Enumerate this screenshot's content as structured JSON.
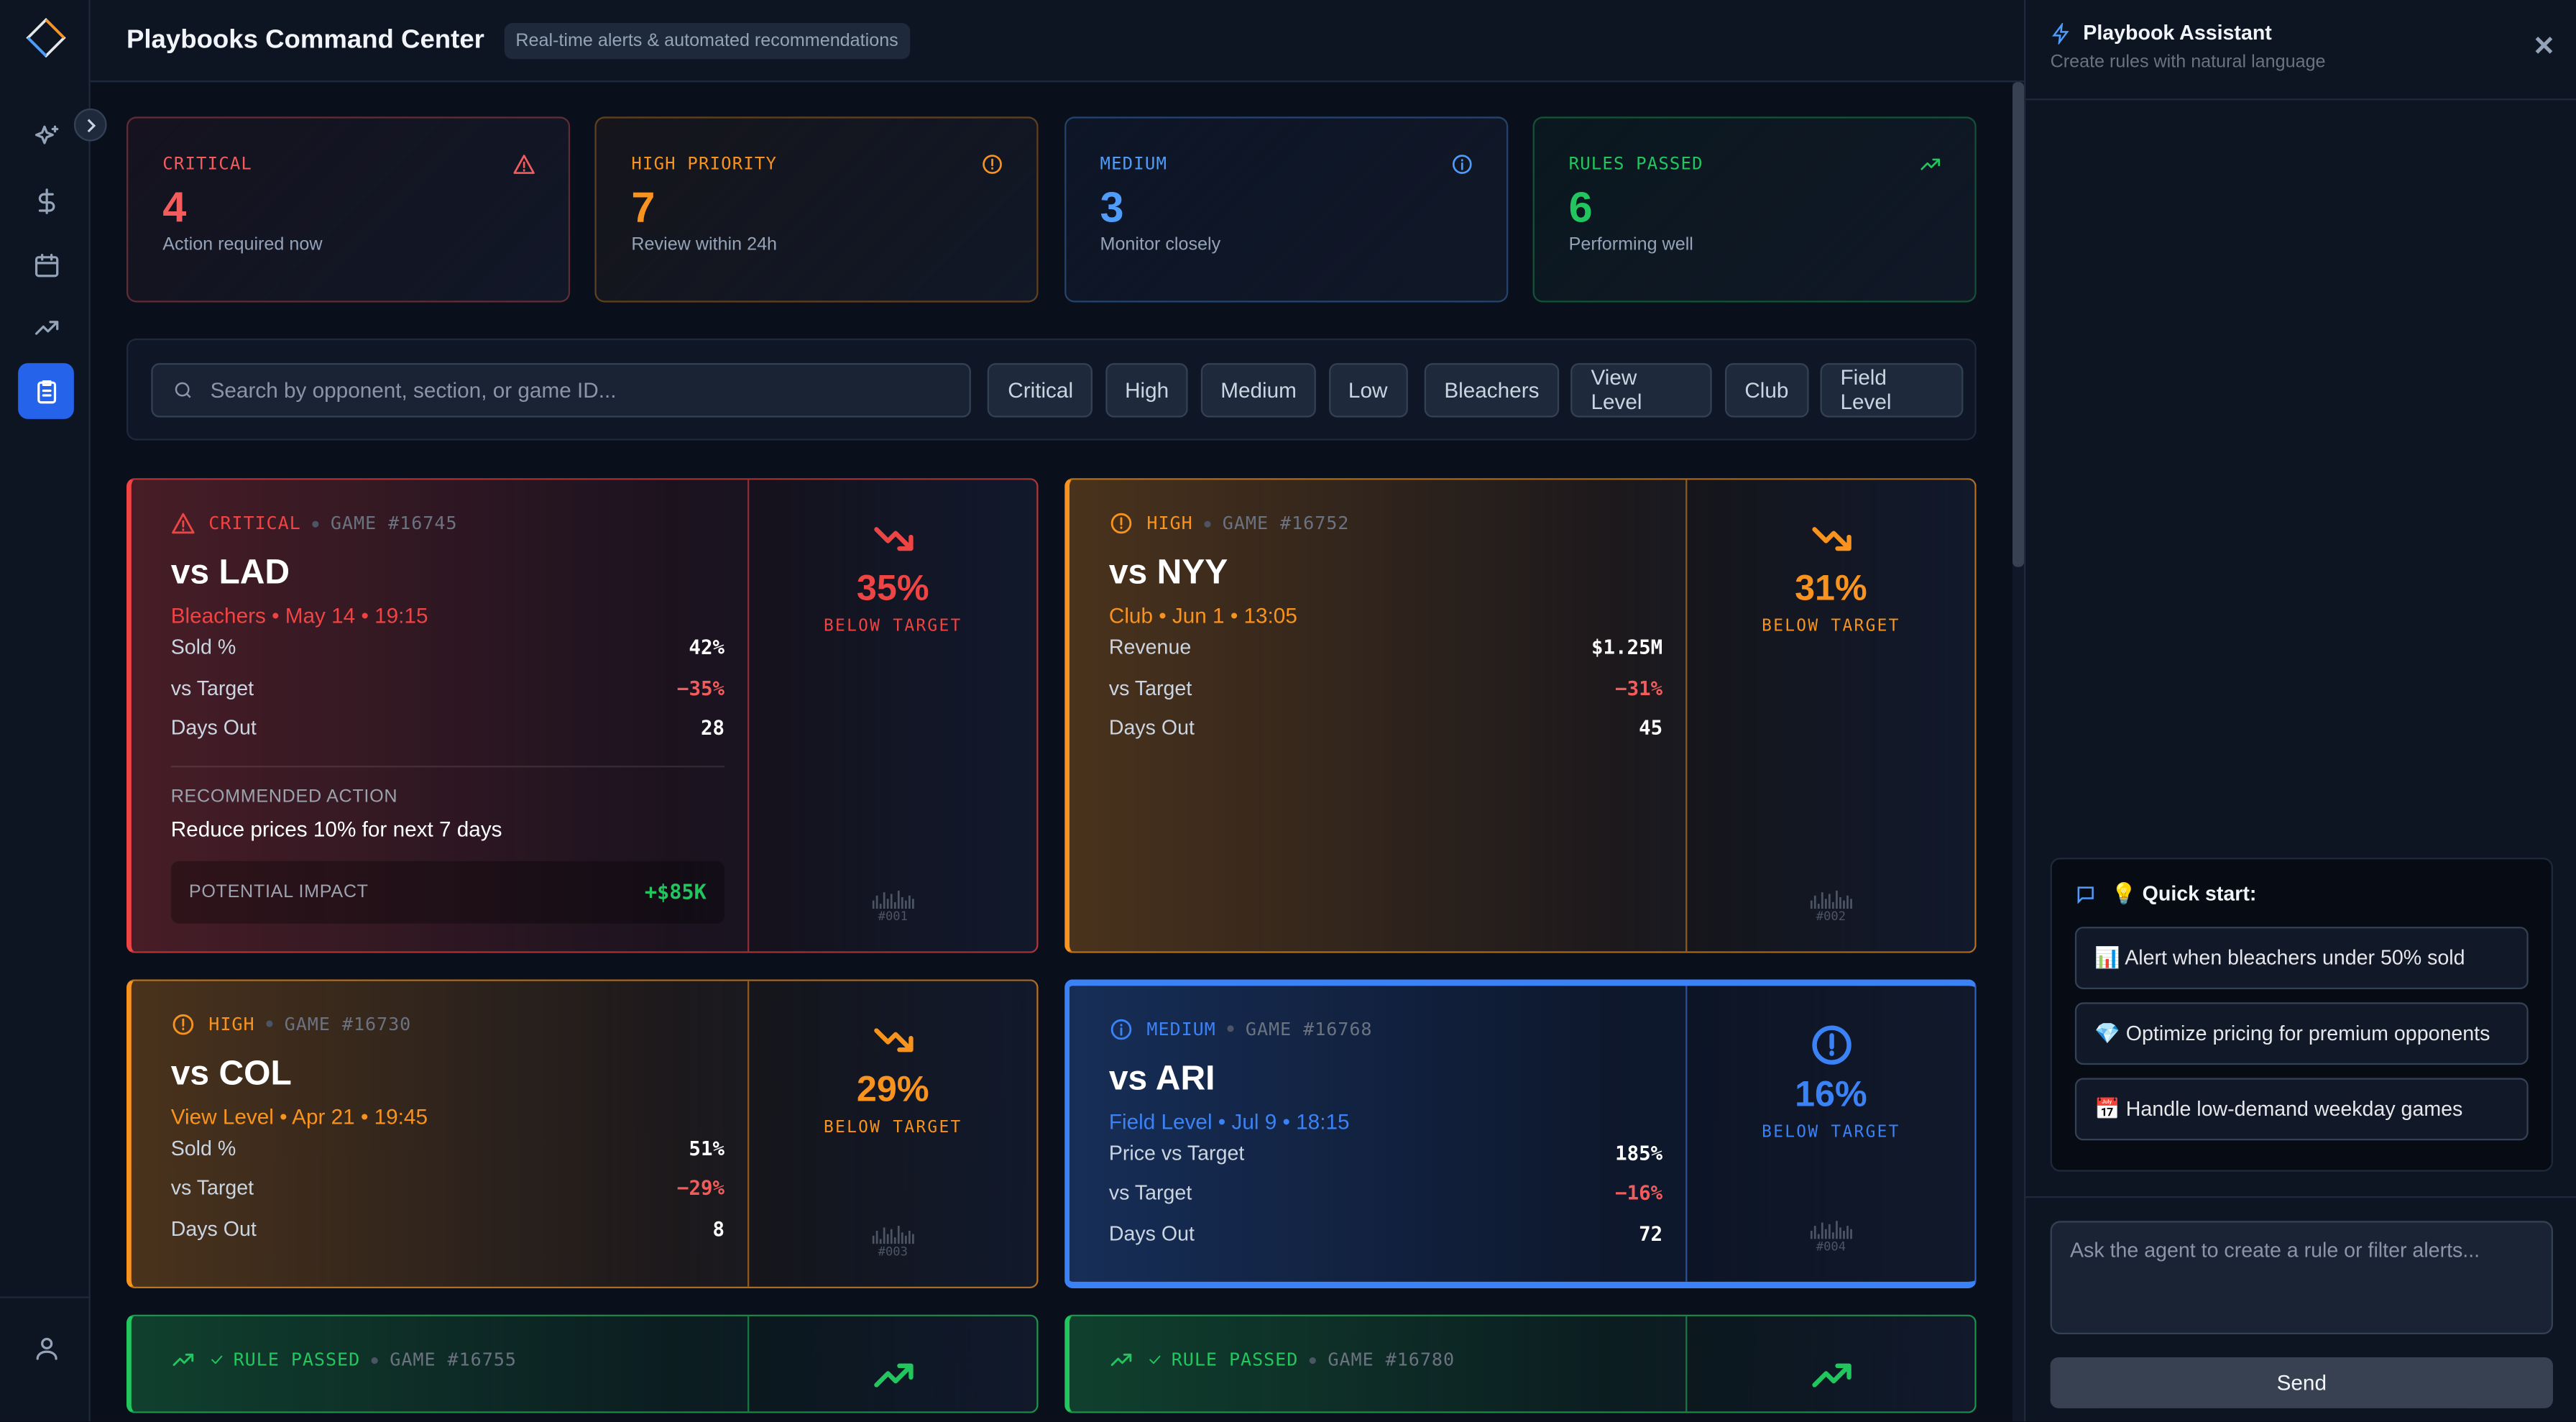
{
  "header": {
    "title": "Playbooks Command Center",
    "badge": "Real-time alerts & automated recommendations"
  },
  "summary": [
    {
      "label": "CRITICAL",
      "value": 4,
      "note": "Action required now",
      "color": "#f25c5c"
    },
    {
      "label": "HIGH PRIORITY",
      "value": 7,
      "note": "Review within 24h",
      "color": "#f7931e"
    },
    {
      "label": "MEDIUM",
      "value": 3,
      "note": "Monitor closely",
      "color": "#4f9cf9"
    },
    {
      "label": "RULES PASSED",
      "value": 6,
      "note": "Performing well",
      "color": "#22c55e"
    }
  ],
  "filters": {
    "search_placeholder": "Search by opponent, section, or game ID...",
    "chips": [
      "Critical",
      "High",
      "Medium",
      "Low",
      "Bleachers",
      "View Level",
      "Club",
      "Field Level"
    ]
  },
  "alerts": [
    {
      "level": "CRITICAL",
      "game": "GAME #16745",
      "color": "#ef4444",
      "opponent": "vs LAD",
      "detail": "Bleachers • May 14 • 19:15",
      "metrics": [
        {
          "label": "Sold %",
          "value": "42%"
        },
        {
          "label": "vs Target",
          "value": "−35%"
        },
        {
          "label": "Days Out",
          "value": "28"
        }
      ],
      "action_label": "RECOMMENDED ACTION",
      "action": "Reduce prices 10% for next 7 days",
      "impact_label": "POTENTIAL IMPACT",
      "impact": "+$85K",
      "delta": "35%",
      "delta_label": "BELOW TARGET",
      "ref": "#001"
    },
    {
      "level": "HIGH",
      "game": "GAME #16752",
      "color": "#f7931e",
      "opponent": "vs NYY",
      "detail": "Club • Jun 1 • 13:05",
      "metrics": [
        {
          "label": "Revenue",
          "value": "$1.25M"
        },
        {
          "label": "vs Target",
          "value": "−31%"
        },
        {
          "label": "Days Out",
          "value": "45"
        }
      ],
      "delta": "31%",
      "delta_label": "BELOW TARGET",
      "ref": "#002"
    },
    {
      "level": "HIGH",
      "game": "GAME #16730",
      "color": "#f7931e",
      "opponent": "vs COL",
      "detail": "View Level • Apr 21 • 19:45",
      "metrics": [
        {
          "label": "Sold %",
          "value": "51%"
        },
        {
          "label": "vs Target",
          "value": "−29%"
        },
        {
          "label": "Days Out",
          "value": "8"
        }
      ],
      "delta": "29%",
      "delta_label": "BELOW TARGET",
      "ref": "#003"
    },
    {
      "level": "MEDIUM",
      "game": "GAME #16768",
      "color": "#3b82f6",
      "opponent": "vs ARI",
      "detail": "Field Level • Jul 9 • 18:15",
      "metrics": [
        {
          "label": "Price vs Target",
          "value": "185%"
        },
        {
          "label": "vs Target",
          "value": "−16%"
        },
        {
          "label": "Days Out",
          "value": "72"
        }
      ],
      "delta": "16%",
      "delta_label": "BELOW TARGET",
      "ref": "#004"
    },
    {
      "level": "RULE PASSED",
      "game": "GAME #16755",
      "color": "#22c55e"
    },
    {
      "level": "RULE PASSED",
      "game": "GAME #16780",
      "color": "#22c55e"
    }
  ],
  "assistant": {
    "title": "Playbook Assistant",
    "subtitle": "Create rules with natural language",
    "quick_start": "💡 Quick start:",
    "suggestions": [
      "📊 Alert when bleachers under 50% sold",
      "💎 Optimize pricing for premium opponents",
      "📅 Handle low-demand weekday games"
    ],
    "input_placeholder": "Ask the agent to create a rule or filter alerts...",
    "send": "Send"
  }
}
